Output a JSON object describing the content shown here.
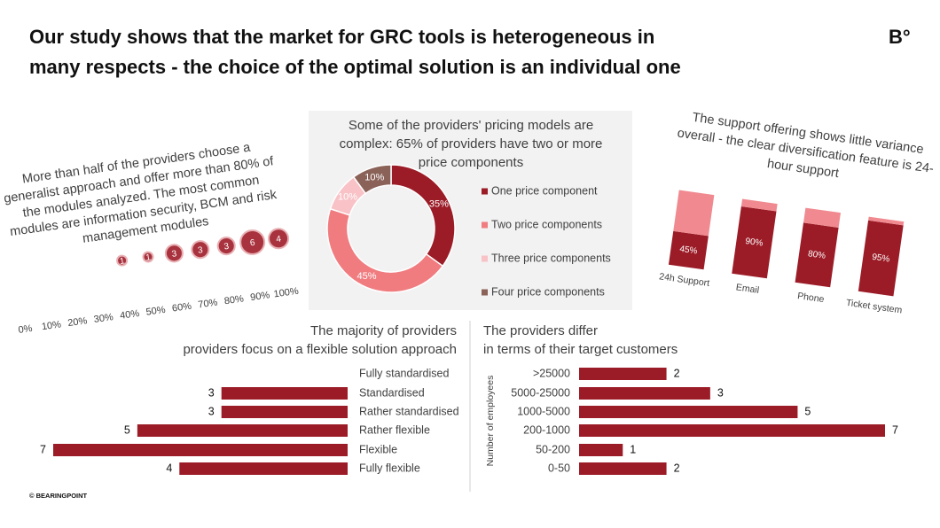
{
  "title": [
    "Our study shows that the market for GRC tools is heterogeneous in",
    "many respects - the choice of the optimal solution is an individual one"
  ],
  "logo": "B°",
  "footer": "© BEARINGPOINT",
  "chart_data": [
    {
      "type": "bubble",
      "title": [
        "More than half of the providers choose a",
        "generalist approach and offer more than 80% of",
        "the modules analyzed. The most common",
        "modules are information security, BCM and risk",
        "management modules"
      ],
      "x": [
        40,
        50,
        60,
        70,
        80,
        90,
        100
      ],
      "values": [
        1,
        1,
        3,
        3,
        3,
        6,
        4
      ],
      "color": "#a8323d",
      "xlim": [
        0,
        100
      ],
      "xticks": [
        {
          "value": 0,
          "label": "0%"
        },
        {
          "value": 10,
          "label": "10%"
        },
        {
          "value": 20,
          "label": "20%"
        },
        {
          "value": 30,
          "label": "30%"
        },
        {
          "value": 40,
          "label": "40%"
        },
        {
          "value": 50,
          "label": "50%"
        },
        {
          "value": 60,
          "label": "60%"
        },
        {
          "value": 70,
          "label": "70%"
        },
        {
          "value": 80,
          "label": "80%"
        },
        {
          "value": 90,
          "label": "90%"
        },
        {
          "value": 100,
          "label": "100%"
        }
      ]
    },
    {
      "type": "donut",
      "title": [
        "Some of the providers' pricing models are",
        "complex: 65% of providers have two or more",
        "price components"
      ],
      "categories": [
        "One price component",
        "Two price components",
        "Three price components",
        "Four price components"
      ],
      "values": [
        35,
        45,
        10,
        10
      ],
      "value_labels": [
        "35%",
        "45%",
        "10%",
        "10%"
      ],
      "colors": [
        "#9b1c27",
        "#f07c80",
        "#f8c2c7",
        "#8a6258"
      ]
    },
    {
      "type": "stacked-bar",
      "title": [
        "The support offering shows little variance",
        "overall - the clear diversification feature is 24-",
        "hour support"
      ],
      "categories": [
        "24h Support",
        "Email",
        "Phone",
        "Ticket system"
      ],
      "ylim": [
        0,
        100
      ],
      "series": [
        {
          "color": "#9b1c27",
          "values": [
            45,
            90,
            80,
            95
          ],
          "value_labels": [
            "45%",
            "90%",
            "80%",
            "95%"
          ]
        },
        {
          "color": "#f08a90",
          "values": [
            55,
            10,
            20,
            5
          ]
        }
      ]
    },
    {
      "type": "hbar",
      "title": [
        "The majority of providers",
        "providers focus on a flexible solution approach"
      ],
      "categories": [
        "Fully standardised",
        "Standardised",
        "Rather standardised",
        "Rather flexible",
        "Flexible",
        "Fully flexible"
      ],
      "values": [
        null,
        3,
        3,
        5,
        7,
        4
      ],
      "color": "#9b1c27",
      "xlim": [
        0,
        7
      ]
    },
    {
      "type": "hbar",
      "title": [
        "The providers differ",
        "in terms of their target customers"
      ],
      "ylabel": "Number of employees",
      "categories": [
        ">25000",
        "5000-25000",
        "1000-5000",
        "200-1000",
        "50-200",
        "0-50"
      ],
      "values": [
        2,
        3,
        5,
        7,
        1,
        2
      ],
      "color": "#9b1c27",
      "xlim": [
        0,
        7
      ]
    }
  ]
}
